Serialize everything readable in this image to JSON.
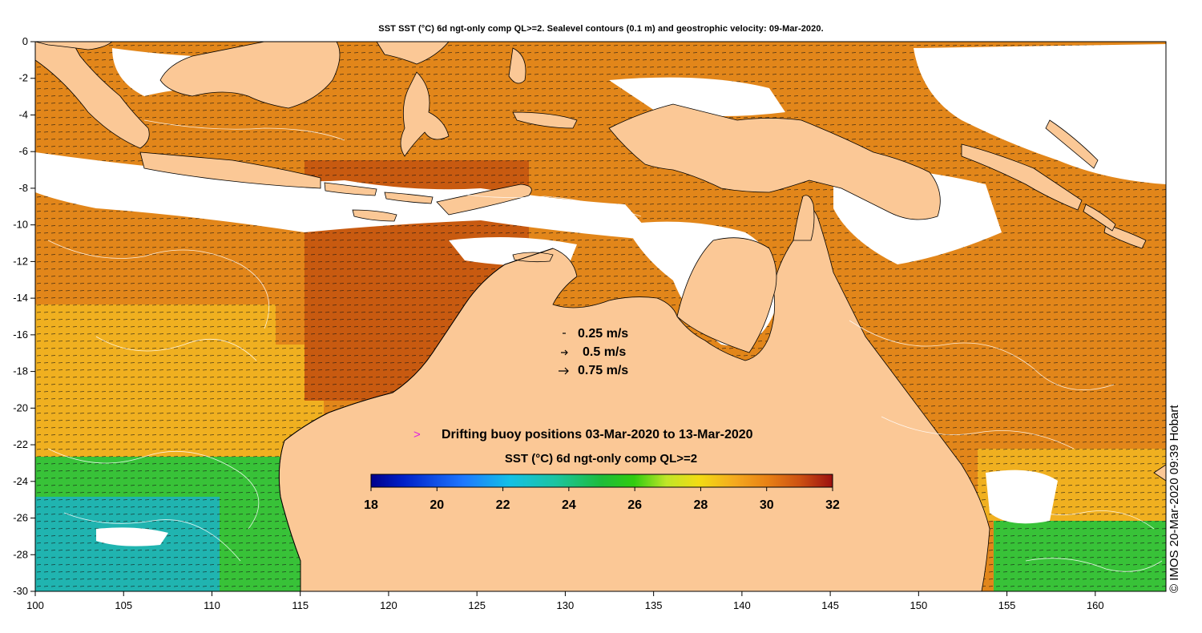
{
  "map": {
    "title": "SST SST (°C) 6d ngt-only comp QL>=2. Sealevel contours (0.1 m) and geostrophic velocity: 09-Mar-2020.",
    "credit": "© IMOS 20-Mar-2020 09:39 Hobart",
    "x_ticks": [
      "100",
      "105",
      "110",
      "115",
      "120",
      "125",
      "130",
      "135",
      "140",
      "145",
      "150",
      "155",
      "160"
    ],
    "y_ticks": [
      "0",
      "-2",
      "-4",
      "-6",
      "-8",
      "-10",
      "-12",
      "-14",
      "-16",
      "-18",
      "-20",
      "-22",
      "-24",
      "-26",
      "-28",
      "-30"
    ],
    "velocity_legend": [
      "0.25 m/s",
      "0.5 m/s",
      "0.75 m/s"
    ],
    "buoy_legend": "Drifting buoy positions 03-Mar-2020 to 13-Mar-2020",
    "buoy_marker": ">",
    "colorbar": {
      "title": "SST (°C) 6d ngt-only comp QL>=2",
      "ticks": [
        "18",
        "20",
        "22",
        "24",
        "26",
        "28",
        "30",
        "32"
      ],
      "range": [
        18,
        32
      ]
    },
    "extent": {
      "lon": [
        100,
        164
      ],
      "lat": [
        -30,
        0
      ]
    },
    "colors": {
      "land": "#fbc896",
      "cloud": "#ffffff",
      "buoy_marker": "#e020e0",
      "sst_hot": "#c85a10",
      "sst_warm": "#e2861a",
      "sst_mid": "#f0b020",
      "sst_green": "#38c238",
      "sst_cool": "#20b4b0"
    }
  }
}
